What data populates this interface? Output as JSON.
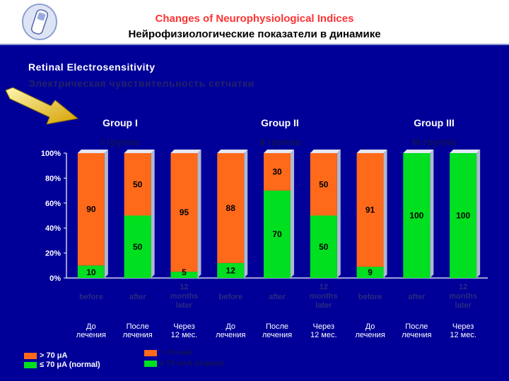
{
  "header": {
    "title_en": "Changes of Neurophysiological Indices",
    "title_ru": "Нейрофизиологические показатели в динамике"
  },
  "section": {
    "title_en": "Retinal Electrosensitivity",
    "title_ru": "Электрическая чувствительность сетчатки"
  },
  "groups": [
    {
      "label_en": "Group I",
      "label_ru": "I группа"
    },
    {
      "label_en": "Group II",
      "label_ru": "II группа"
    },
    {
      "label_en": "Group III",
      "label_ru": "III группа"
    }
  ],
  "legend": {
    "over_en": "> 70 μA",
    "normal_en": "≤ 70 μA (normal)",
    "over_ru": "> 70 мкА",
    "normal_ru": "≤ 70 мкА (норма)"
  },
  "colors": {
    "over": "#ff6a1a",
    "normal": "#00e020",
    "background": "#000099"
  },
  "chart_data": {
    "type": "bar",
    "stacked": true,
    "percent": true,
    "categories": [
      {
        "en": "before",
        "ru": "До лечения"
      },
      {
        "en": "after",
        "ru": "После лечения"
      },
      {
        "en": "12 months later",
        "ru": "Через 12 мес."
      },
      {
        "en": "before",
        "ru": "До лечения"
      },
      {
        "en": "after",
        "ru": "После лечения"
      },
      {
        "en": "12 months later",
        "ru": "Через 12 мес."
      },
      {
        "en": "before",
        "ru": "До лечения"
      },
      {
        "en": "after",
        "ru": "После лечения"
      },
      {
        "en": "12 months later",
        "ru": "Через 12 мес."
      }
    ],
    "series": [
      {
        "name": "≤ 70 μA (normal)",
        "values": [
          10,
          50,
          5,
          12,
          70,
          50,
          9,
          100,
          100
        ]
      },
      {
        "name": "> 70 μA",
        "values": [
          90,
          50,
          95,
          88,
          30,
          50,
          91,
          0,
          0
        ]
      }
    ],
    "yticks": [
      "0%",
      "20%",
      "40%",
      "60%",
      "80%",
      "100%"
    ],
    "ylim": [
      0,
      100
    ],
    "legend_position": "bottom-left"
  }
}
